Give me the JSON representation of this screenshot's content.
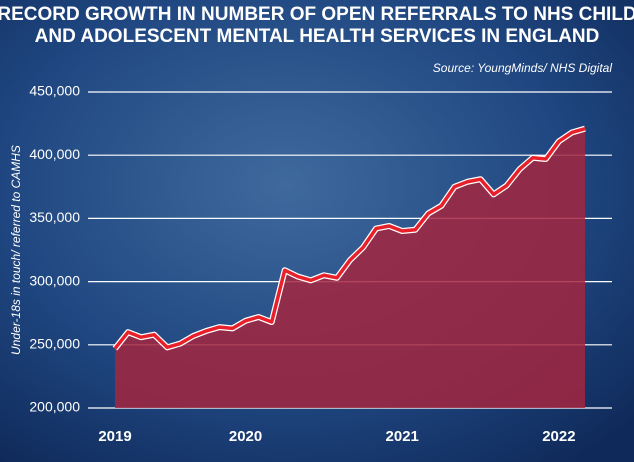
{
  "chart_data": {
    "type": "area",
    "title": [
      "RECORD GROWTH IN NUMBER OF OPEN REFERRALS TO NHS CHILD",
      "AND ADOLESCENT MENTAL HEALTH SERVICES IN ENGLAND"
    ],
    "source": "Source: YoungMinds/ NHS Digital",
    "y_label": "Under-18s in touch/ referred to CAMHS",
    "categories": [
      "2019",
      null,
      null,
      null,
      null,
      null,
      null,
      null,
      null,
      null,
      "2020",
      null,
      null,
      null,
      null,
      null,
      null,
      null,
      null,
      null,
      null,
      null,
      "2021",
      null,
      null,
      null,
      null,
      null,
      null,
      null,
      null,
      null,
      null,
      null,
      "2022",
      null,
      null
    ],
    "values": [
      247000,
      260000,
      256000,
      258000,
      248000,
      251000,
      257000,
      261000,
      264000,
      263000,
      269000,
      272000,
      268000,
      309000,
      304000,
      301000,
      305000,
      303000,
      317000,
      327000,
      342000,
      344000,
      340000,
      341000,
      354000,
      360000,
      375000,
      379000,
      381000,
      369000,
      376000,
      389000,
      398000,
      397000,
      411000,
      418000,
      421000
    ],
    "line_color": "#e8202a",
    "fill_color": "#a3263f",
    "ylim": [
      200000,
      450000
    ],
    "yticks": [
      {
        "value": 200000,
        "label": "200,000"
      },
      {
        "value": 250000,
        "label": "250,000"
      },
      {
        "value": 300000,
        "label": "300,000"
      },
      {
        "value": 350000,
        "label": "350,000"
      },
      {
        "value": 400000,
        "label": "400,000"
      },
      {
        "value": 450000,
        "label": "450,000"
      }
    ],
    "grid": true
  }
}
